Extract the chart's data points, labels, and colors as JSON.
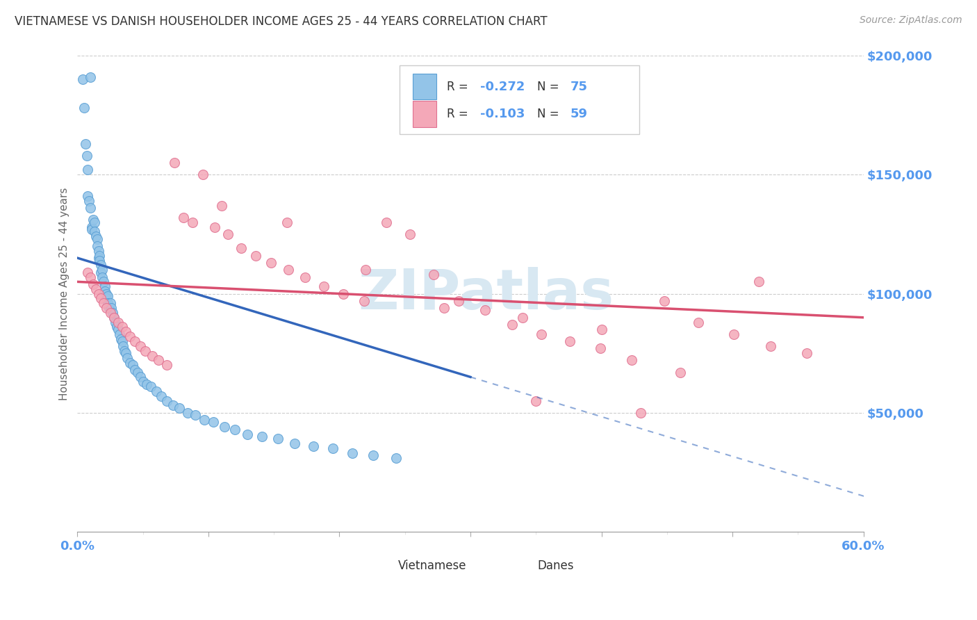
{
  "title": "VIETNAMESE VS DANISH HOUSEHOLDER INCOME AGES 25 - 44 YEARS CORRELATION CHART",
  "source": "Source: ZipAtlas.com",
  "ylabel": "Householder Income Ages 25 - 44 years",
  "xmin": 0.0,
  "xmax": 0.6,
  "ymin": 0,
  "ymax": 200000,
  "yticks": [
    0,
    50000,
    100000,
    150000,
    200000
  ],
  "xticks": [
    0.0,
    0.1,
    0.2,
    0.3,
    0.4,
    0.5,
    0.6
  ],
  "background_color": "#ffffff",
  "vietnamese_color": "#93c4e8",
  "danish_color": "#f4a8b8",
  "vietnamese_edge": "#5a9fd4",
  "danish_edge": "#e07090",
  "line_blue": "#3366bb",
  "line_pink": "#d95070",
  "tick_color": "#5599ee",
  "watermark_color": "#d8e8f2",
  "R_vietnamese": -0.272,
  "N_vietnamese": 75,
  "R_danish": -0.103,
  "N_danish": 59,
  "legend_label_vietnamese": "Vietnamese",
  "legend_label_danish": "Danes",
  "viet_x": [
    0.004,
    0.005,
    0.006,
    0.007,
    0.008,
    0.008,
    0.009,
    0.01,
    0.01,
    0.011,
    0.011,
    0.012,
    0.013,
    0.013,
    0.014,
    0.015,
    0.015,
    0.016,
    0.016,
    0.017,
    0.017,
    0.018,
    0.018,
    0.019,
    0.019,
    0.02,
    0.021,
    0.021,
    0.022,
    0.022,
    0.023,
    0.023,
    0.024,
    0.025,
    0.026,
    0.027,
    0.028,
    0.029,
    0.03,
    0.031,
    0.032,
    0.033,
    0.034,
    0.035,
    0.036,
    0.037,
    0.038,
    0.04,
    0.042,
    0.044,
    0.046,
    0.048,
    0.05,
    0.053,
    0.056,
    0.06,
    0.064,
    0.068,
    0.073,
    0.078,
    0.084,
    0.09,
    0.097,
    0.104,
    0.112,
    0.12,
    0.13,
    0.141,
    0.153,
    0.166,
    0.18,
    0.195,
    0.21,
    0.226,
    0.243
  ],
  "viet_y": [
    190000,
    178000,
    163000,
    158000,
    152000,
    141000,
    139000,
    191000,
    136000,
    128000,
    127000,
    131000,
    130000,
    126000,
    124000,
    123000,
    120000,
    118000,
    115000,
    116000,
    114000,
    112000,
    109000,
    110000,
    107000,
    105000,
    103000,
    101000,
    100000,
    98000,
    99000,
    96000,
    94000,
    96000,
    94000,
    92000,
    90000,
    88000,
    86000,
    85000,
    83000,
    81000,
    80000,
    78000,
    76000,
    75000,
    73000,
    71000,
    70000,
    68000,
    67000,
    65000,
    63000,
    62000,
    61000,
    59000,
    57000,
    55000,
    53000,
    52000,
    50000,
    49000,
    47000,
    46000,
    44000,
    43000,
    41000,
    40000,
    39000,
    37000,
    36000,
    35000,
    33000,
    32000,
    31000
  ],
  "danish_x": [
    0.008,
    0.01,
    0.012,
    0.014,
    0.016,
    0.018,
    0.02,
    0.022,
    0.025,
    0.028,
    0.031,
    0.034,
    0.037,
    0.04,
    0.044,
    0.048,
    0.052,
    0.057,
    0.062,
    0.068,
    0.074,
    0.081,
    0.088,
    0.096,
    0.105,
    0.115,
    0.125,
    0.136,
    0.148,
    0.161,
    0.174,
    0.188,
    0.203,
    0.219,
    0.236,
    0.254,
    0.272,
    0.291,
    0.311,
    0.332,
    0.354,
    0.376,
    0.399,
    0.423,
    0.448,
    0.474,
    0.501,
    0.529,
    0.557,
    0.11,
    0.16,
    0.22,
    0.28,
    0.34,
    0.4,
    0.46,
    0.35,
    0.43,
    0.52
  ],
  "danish_y": [
    109000,
    107000,
    104000,
    102000,
    100000,
    98000,
    96000,
    94000,
    92000,
    90000,
    88000,
    86000,
    84000,
    82000,
    80000,
    78000,
    76000,
    74000,
    72000,
    70000,
    155000,
    132000,
    130000,
    150000,
    128000,
    125000,
    119000,
    116000,
    113000,
    110000,
    107000,
    103000,
    100000,
    97000,
    130000,
    125000,
    108000,
    97000,
    93000,
    87000,
    83000,
    80000,
    77000,
    72000,
    97000,
    88000,
    83000,
    78000,
    75000,
    137000,
    130000,
    110000,
    94000,
    90000,
    85000,
    67000,
    55000,
    50000,
    105000
  ]
}
